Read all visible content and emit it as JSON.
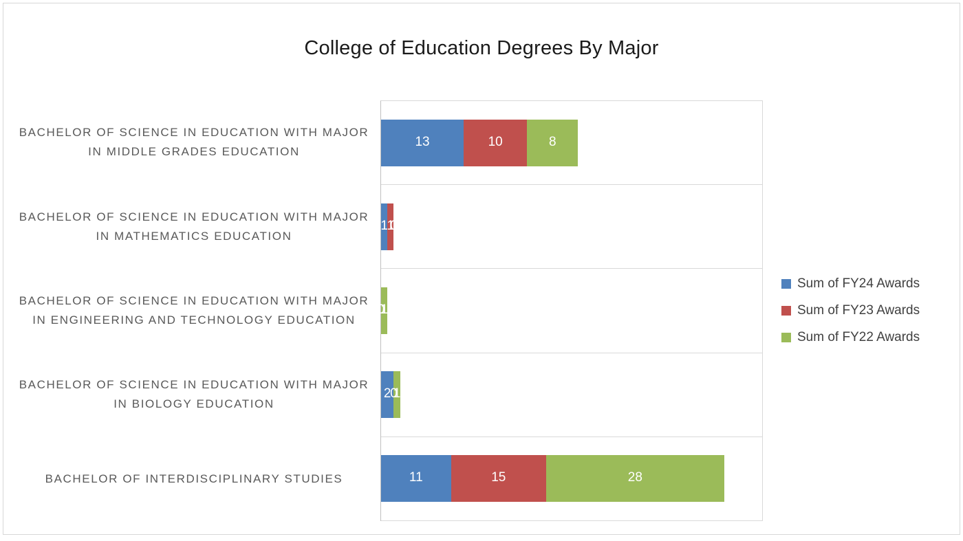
{
  "chart_data": {
    "type": "bar",
    "orientation": "horizontal",
    "stacked": true,
    "title": "College of Education Degrees By Major",
    "categories": [
      "BACHELOR OF SCIENCE IN EDUCATION WITH MAJOR IN MIDDLE GRADES EDUCATION",
      "BACHELOR OF SCIENCE IN EDUCATION WITH MAJOR IN MATHEMATICS EDUCATION",
      "BACHELOR OF SCIENCE IN EDUCATION WITH MAJOR IN ENGINEERING AND TECHNOLOGY EDUCATION",
      "BACHELOR OF SCIENCE IN EDUCATION WITH MAJOR IN BIOLOGY EDUCATION",
      "BACHELOR OF INTERDISCIPLINARY STUDIES"
    ],
    "series": [
      {
        "name": "Sum of FY24 Awards",
        "color": "#4F81BD",
        "values": [
          13,
          1,
          0,
          2,
          11
        ]
      },
      {
        "name": "Sum of FY23 Awards",
        "color": "#C0504D",
        "values": [
          10,
          1,
          0,
          0,
          15
        ]
      },
      {
        "name": "Sum of FY22 Awards",
        "color": "#9BBB59",
        "values": [
          8,
          0,
          1,
          1,
          28
        ]
      }
    ],
    "xlim": [
      0,
      60
    ],
    "legend_position": "right",
    "gridlines": "category-separators",
    "data_labels": "inside-center-white",
    "grid_color": "#d9d9d9",
    "axis_line_color": "#bfbfbf",
    "category_label_color": "#595959",
    "title_color": "#1a1a1a"
  }
}
